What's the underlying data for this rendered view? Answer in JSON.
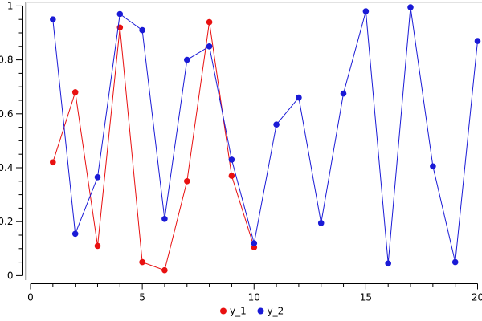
{
  "chart_data": {
    "type": "line",
    "title": "",
    "xlabel": "",
    "ylabel": "",
    "xlim": [
      0,
      20
    ],
    "ylim": [
      0,
      1
    ],
    "grid": false,
    "legend_position": "bottom-center",
    "x_major_ticks": [
      0,
      5,
      10,
      15,
      20
    ],
    "x_tick_labels": [
      "0",
      "5",
      "10",
      "15",
      "20"
    ],
    "x_minor_step": 1,
    "y_major_ticks": [
      0,
      0.2,
      0.4,
      0.6,
      0.8,
      1
    ],
    "y_tick_labels": [
      "0",
      "0.2",
      "0.4",
      "0.6",
      "0.8",
      "1"
    ],
    "y_minor_step": 0.05,
    "series": [
      {
        "name": "y_1",
        "color": "#e81010",
        "marker": "circle",
        "line_style": "solid",
        "x": [
          1,
          2,
          3,
          4,
          5,
          6,
          7,
          8,
          9,
          10
        ],
        "values": [
          0.42,
          0.68,
          0.11,
          0.92,
          0.05,
          0.02,
          0.35,
          0.94,
          0.37,
          0.105
        ]
      },
      {
        "name": "y_2",
        "color": "#1a1ad6",
        "marker": "circle",
        "line_style": "solid",
        "x": [
          1,
          2,
          3,
          4,
          5,
          6,
          7,
          8,
          9,
          10,
          11,
          12,
          13,
          14,
          15,
          16,
          17,
          18,
          19,
          20
        ],
        "values": [
          0.95,
          0.155,
          0.365,
          0.97,
          0.91,
          0.21,
          0.8,
          0.85,
          0.43,
          0.12,
          0.56,
          0.66,
          0.195,
          0.675,
          0.98,
          0.045,
          0.995,
          0.405,
          0.05,
          0.87
        ]
      }
    ]
  },
  "colors": {
    "axis": "#000000",
    "tick_label": "#000000",
    "border_dark": "#b0b0b0",
    "border_light": "#e2e2e2",
    "background": "#ffffff"
  }
}
